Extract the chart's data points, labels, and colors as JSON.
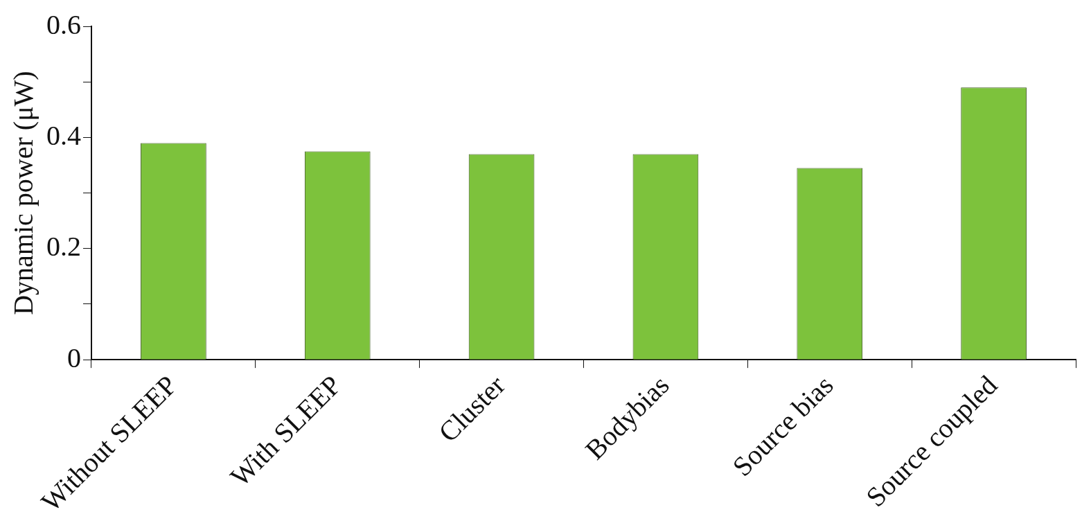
{
  "chart_data": {
    "type": "bar",
    "ylabel": "Dynamic power (μW)",
    "categories": [
      "Without SLEEP",
      "With SLEEP",
      "Cluster",
      "Bodybias",
      "Source bias",
      "Source coupled"
    ],
    "values": [
      0.39,
      0.375,
      0.37,
      0.37,
      0.345,
      0.49
    ],
    "color": "#7dc23c",
    "ylim": [
      0,
      0.6
    ],
    "yticks": [
      0,
      {
        "value": 0.1,
        "label": null
      },
      0.2,
      {
        "value": 0.3,
        "label": null
      },
      0.4,
      {
        "value": 0.5,
        "label": null
      },
      0.6
    ],
    "grid": false
  }
}
